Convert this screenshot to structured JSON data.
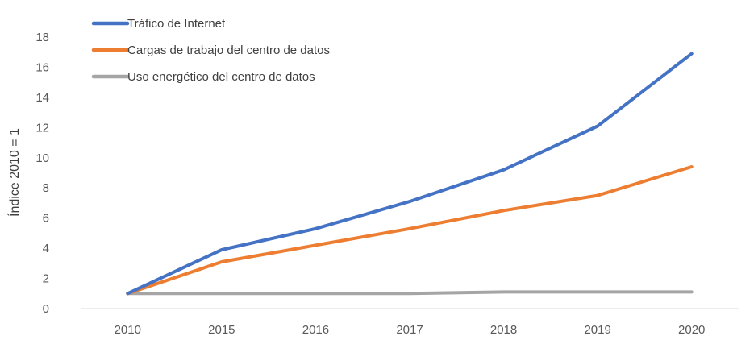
{
  "chart_data": {
    "type": "line",
    "title": "",
    "xlabel": "",
    "ylabel": "Índice 2010 = 1",
    "categories": [
      "2010",
      "2015",
      "2016",
      "2017",
      "2018",
      "2019",
      "2020"
    ],
    "ylim": [
      0,
      18
    ],
    "yticks": [
      0,
      2,
      4,
      6,
      8,
      10,
      12,
      14,
      16,
      18
    ],
    "grid": false,
    "legend_position": "top-left",
    "series": [
      {
        "name": "Tráfico de Internet",
        "color": "#4472C4",
        "values": [
          1,
          3.9,
          5.3,
          7.1,
          9.2,
          12.1,
          16.9
        ]
      },
      {
        "name": "Cargas de trabajo del centro de datos",
        "color": "#ED7D31",
        "values": [
          1,
          3.1,
          4.2,
          5.3,
          6.5,
          7.5,
          9.4
        ]
      },
      {
        "name": "Uso energético del centro de datos",
        "color": "#A5A5A5",
        "values": [
          1,
          1,
          1,
          1,
          1.1,
          1.1,
          1.1
        ]
      }
    ]
  }
}
